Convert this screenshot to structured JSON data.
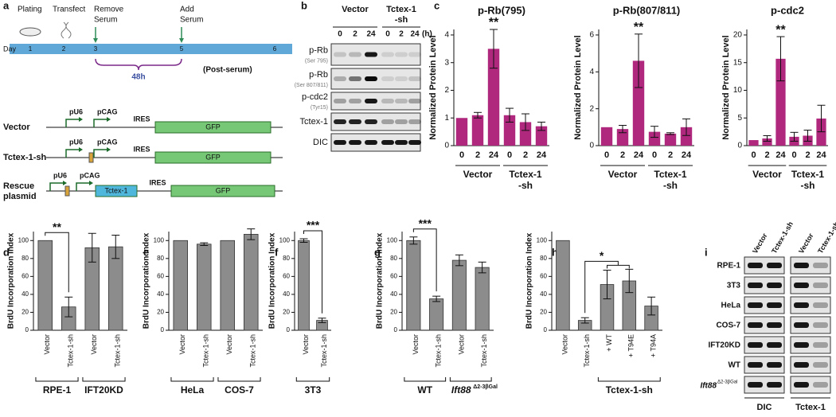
{
  "panel_labels": [
    "a",
    "b",
    "c",
    "d",
    "e",
    "f",
    "g",
    "h",
    "i"
  ],
  "timeline": {
    "events": [
      [
        "Plating"
      ],
      [
        "Transfect"
      ],
      [
        "Remove",
        "Serum"
      ],
      [
        "Add",
        "Serum"
      ]
    ],
    "day_label": "Day",
    "days": [
      "1",
      "2",
      "3",
      "5",
      "6"
    ],
    "interval": "48h",
    "post_serum": "(Post-serum)"
  },
  "constructs": [
    {
      "name": [
        "Vector"
      ],
      "labels": [
        "pU6",
        "pCAG",
        "IRES",
        "GFP"
      ]
    },
    {
      "name": [
        "Tctex-1-sh"
      ],
      "labels": [
        "pU6",
        "pCAG",
        "IRES",
        "GFP"
      ]
    },
    {
      "name": [
        "Rescue",
        "plasmid"
      ],
      "labels": [
        "pU6",
        "pCAG",
        "Tctex-1",
        "IRES",
        "GFP"
      ]
    }
  ],
  "blot_b": {
    "groups": [
      [
        "Vector"
      ],
      [
        "Tctex-1",
        "-sh"
      ]
    ],
    "lanes": [
      "0",
      "2",
      "24",
      "0",
      "2",
      "24"
    ],
    "unit": "(h)",
    "rows": [
      {
        "name": "p-Rb",
        "detail": "(Ser 795)"
      },
      {
        "name": "p-Rb",
        "detail": "(Ser 807/811)"
      },
      {
        "name": "p-cdc2",
        "detail": "(Tyr15)"
      },
      {
        "name": "Tctex-1"
      },
      {
        "name": "DIC"
      }
    ]
  },
  "blot_i": {
    "columns": [
      "DIC",
      "Tctex-1"
    ],
    "lanes": [
      "Vector",
      "Tctex-1-sh"
    ],
    "rows": [
      "RPE-1",
      "3T3",
      "HeLa",
      "COS-7",
      "IFT20KD",
      "WT",
      {
        "name": "Ift88",
        "sup": "Δ2-3βGal"
      }
    ]
  },
  "chart_data": [
    {
      "type": "bar",
      "title": "p-Rb(795)",
      "y_label": "Normalized Protein Level",
      "color": "#b0287e",
      "categories": [
        "0",
        "2",
        "24",
        "0",
        "2",
        "24"
      ],
      "values": [
        1,
        1.1,
        3.5,
        1.1,
        0.85,
        0.7
      ],
      "errors": [
        0,
        0.1,
        0.7,
        0.25,
        0.3,
        0.15
      ],
      "ylim": [
        0,
        4.2
      ],
      "yticks": [
        0,
        1,
        2,
        3,
        4
      ],
      "groups": [
        {
          "label": [
            "Vector"
          ],
          "span": [
            0,
            2
          ]
        },
        {
          "label": [
            "Tctex-1",
            "-sh"
          ],
          "span": [
            3,
            5
          ]
        }
      ],
      "annotations": [
        {
          "text": "**",
          "bars": [
            2
          ]
        }
      ]
    },
    {
      "type": "bar",
      "title": "p-Rb(807/811)",
      "y_label": "Normalized Protein Level",
      "color": "#b0287e",
      "categories": [
        "0",
        "2",
        "24",
        "0",
        "2",
        "24"
      ],
      "values": [
        1,
        0.9,
        4.6,
        0.75,
        0.65,
        1.0
      ],
      "errors": [
        0,
        0.2,
        1.45,
        0.3,
        0.05,
        0.45
      ],
      "ylim": [
        0,
        6.3
      ],
      "yticks": [
        0,
        2,
        4,
        6
      ],
      "groups": [
        {
          "label": [
            "Vector"
          ],
          "span": [
            0,
            2
          ]
        },
        {
          "label": [
            "Tctex-1",
            "-sh"
          ],
          "span": [
            3,
            5
          ]
        }
      ],
      "annotations": [
        {
          "text": "**",
          "bars": [
            2
          ]
        }
      ]
    },
    {
      "type": "bar",
      "title": "p-cdc2",
      "y_label": "Normalized Protein Level",
      "color": "#b0287e",
      "categories": [
        "0",
        "2",
        "24",
        "0",
        "2",
        "24"
      ],
      "values": [
        1,
        1.3,
        15.7,
        1.6,
        1.8,
        4.9
      ],
      "errors": [
        0,
        0.5,
        4,
        0.8,
        1,
        2.4
      ],
      "ylim": [
        0,
        21
      ],
      "yticks": [
        0,
        5,
        10,
        15,
        20
      ],
      "groups": [
        {
          "label": [
            "Vector"
          ],
          "span": [
            0,
            2
          ]
        },
        {
          "label": [
            "Tctex-1",
            "-sh"
          ],
          "span": [
            3,
            5
          ]
        }
      ],
      "annotations": [
        {
          "text": "**",
          "bars": [
            2
          ]
        }
      ]
    },
    {
      "type": "bar",
      "y_label": "BrdU Incorporation Index",
      "color": "#8c8c8c",
      "categories": [
        "Vector",
        "Tctex-1-sh",
        "Vector",
        "Tctex-1-sh"
      ],
      "values": [
        100,
        26,
        92,
        93
      ],
      "errors": [
        0,
        11,
        16,
        13
      ],
      "ylim": [
        0,
        110
      ],
      "yticks": [
        0,
        20,
        40,
        60,
        80,
        100
      ],
      "groups": [
        {
          "label": [
            "RPE-1"
          ],
          "span": [
            0,
            1
          ]
        },
        {
          "label": [
            "IFT20KD"
          ],
          "span": [
            2,
            3
          ]
        }
      ],
      "annotations": [
        {
          "text": "**",
          "bars": [
            0,
            1
          ]
        }
      ]
    },
    {
      "type": "bar",
      "y_label": "BrdU Incorporation Index",
      "color": "#8c8c8c",
      "categories": [
        "Vector",
        "Tctex-1-sh",
        "Vector",
        "Tctex-1-sh"
      ],
      "values": [
        100,
        96,
        100,
        107
      ],
      "errors": [
        0,
        1.5,
        0,
        6
      ],
      "ylim": [
        0,
        110
      ],
      "yticks": [
        0,
        20,
        40,
        60,
        80,
        100
      ],
      "groups": [
        {
          "label": [
            "HeLa"
          ],
          "span": [
            0,
            1
          ]
        },
        {
          "label": [
            "COS-7"
          ],
          "span": [
            2,
            3
          ]
        }
      ]
    },
    {
      "type": "bar",
      "y_label": "BrdU Incorporation Index",
      "color": "#8c8c8c",
      "categories": [
        "Vector",
        "Tctex-1-sh"
      ],
      "values": [
        100,
        11
      ],
      "errors": [
        2,
        2.5
      ],
      "ylim": [
        0,
        110
      ],
      "yticks": [
        0,
        20,
        40,
        60,
        80,
        100
      ],
      "groups": [
        {
          "label": [
            "3T3"
          ],
          "span": [
            0,
            1
          ]
        }
      ],
      "annotations": [
        {
          "text": "***",
          "bars": [
            0,
            1
          ]
        }
      ]
    },
    {
      "type": "bar",
      "y_label": "BrdU Incorporation Index",
      "color": "#8c8c8c",
      "categories": [
        "Vector",
        "Tctex-1-sh",
        "Vector",
        "Tctex-1-sh"
      ],
      "values": [
        100,
        35,
        78,
        70
      ],
      "errors": [
        4,
        3,
        6,
        6
      ],
      "ylim": [
        0,
        110
      ],
      "yticks": [
        0,
        20,
        40,
        60,
        80,
        100
      ],
      "groups": [
        {
          "label": [
            "WT"
          ],
          "span": [
            0,
            1
          ]
        },
        {
          "label": {
            "name": "Ift88",
            "sup": "Δ2-3βGal"
          },
          "span": [
            2,
            3
          ]
        }
      ],
      "annotations": [
        {
          "text": "***",
          "bars": [
            0,
            1
          ]
        }
      ]
    },
    {
      "type": "bar",
      "y_label": "BrdU Incorporation Index",
      "color": "#8c8c8c",
      "categories": [
        "Vector",
        "Tctex-1-sh",
        "+ WT",
        "+ T94E",
        "+ T94A"
      ],
      "values": [
        100,
        11,
        51,
        55,
        27
      ],
      "errors": [
        0,
        3,
        16,
        13,
        10
      ],
      "ylim": [
        0,
        110
      ],
      "yticks": [
        0,
        20,
        40,
        60,
        80,
        100
      ],
      "groups": [
        {
          "label": [
            "Tctex-1-sh"
          ],
          "span": [
            2,
            4
          ]
        }
      ],
      "annotations": [
        {
          "text": "*",
          "bars": [
            1,
            2,
            3
          ]
        }
      ]
    }
  ]
}
